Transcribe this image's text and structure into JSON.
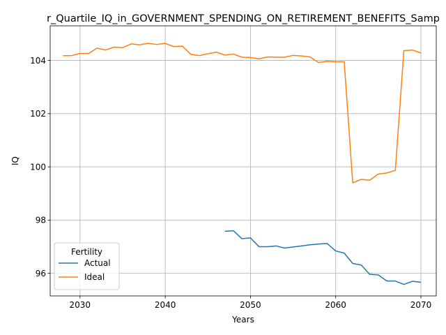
{
  "chart_data": {
    "type": "line",
    "title": "r_Quartile_IQ_in_GOVERNMENT_SPENDING_ON_RETIREMENT_BENEFITS_Samp",
    "xlabel": "Years",
    "ylabel": "IQ",
    "xlim": [
      2026.5,
      2071.8
    ],
    "ylim": [
      95.15,
      105.3
    ],
    "x_ticks": [
      2030,
      2040,
      2050,
      2060,
      2070
    ],
    "y_ticks": [
      96,
      98,
      100,
      102,
      104
    ],
    "grid": true,
    "legend": {
      "title": "Fertility",
      "placement": "lower-left"
    },
    "series": [
      {
        "name": "Actual",
        "color": "#1f77b4",
        "x": [
          2047,
          2048,
          2049,
          2050,
          2051,
          2052,
          2053,
          2054,
          2055,
          2056,
          2057,
          2058,
          2059,
          2060,
          2061,
          2062,
          2063,
          2064,
          2065,
          2066,
          2067,
          2068,
          2069,
          2070
        ],
        "y": [
          97.58,
          97.6,
          97.3,
          97.33,
          97.0,
          97.0,
          97.03,
          96.95,
          96.99,
          97.03,
          97.07,
          97.1,
          97.12,
          96.84,
          96.76,
          96.37,
          96.31,
          95.96,
          95.94,
          95.71,
          95.71,
          95.58,
          95.7,
          95.66
        ]
      },
      {
        "name": "Ideal",
        "color": "#ff7f0e",
        "x": [
          2028,
          2029,
          2030,
          2031,
          2032,
          2033,
          2034,
          2035,
          2036,
          2037,
          2038,
          2039,
          2040,
          2041,
          2042,
          2043,
          2044,
          2045,
          2046,
          2047,
          2048,
          2049,
          2050,
          2051,
          2052,
          2053,
          2054,
          2055,
          2056,
          2057,
          2058,
          2059,
          2060,
          2061,
          2062,
          2063,
          2064,
          2065,
          2066,
          2067,
          2068,
          2069,
          2070
        ],
        "y": [
          104.18,
          104.18,
          104.26,
          104.26,
          104.46,
          104.39,
          104.5,
          104.48,
          104.62,
          104.59,
          104.64,
          104.6,
          104.64,
          104.52,
          104.54,
          104.23,
          104.18,
          104.25,
          104.31,
          104.2,
          104.24,
          104.12,
          104.11,
          104.06,
          104.13,
          104.12,
          104.12,
          104.19,
          104.17,
          104.13,
          103.92,
          103.97,
          103.95,
          103.95,
          99.4,
          99.53,
          99.5,
          99.73,
          99.77,
          99.87,
          104.37,
          104.39,
          104.28
        ]
      }
    ]
  }
}
